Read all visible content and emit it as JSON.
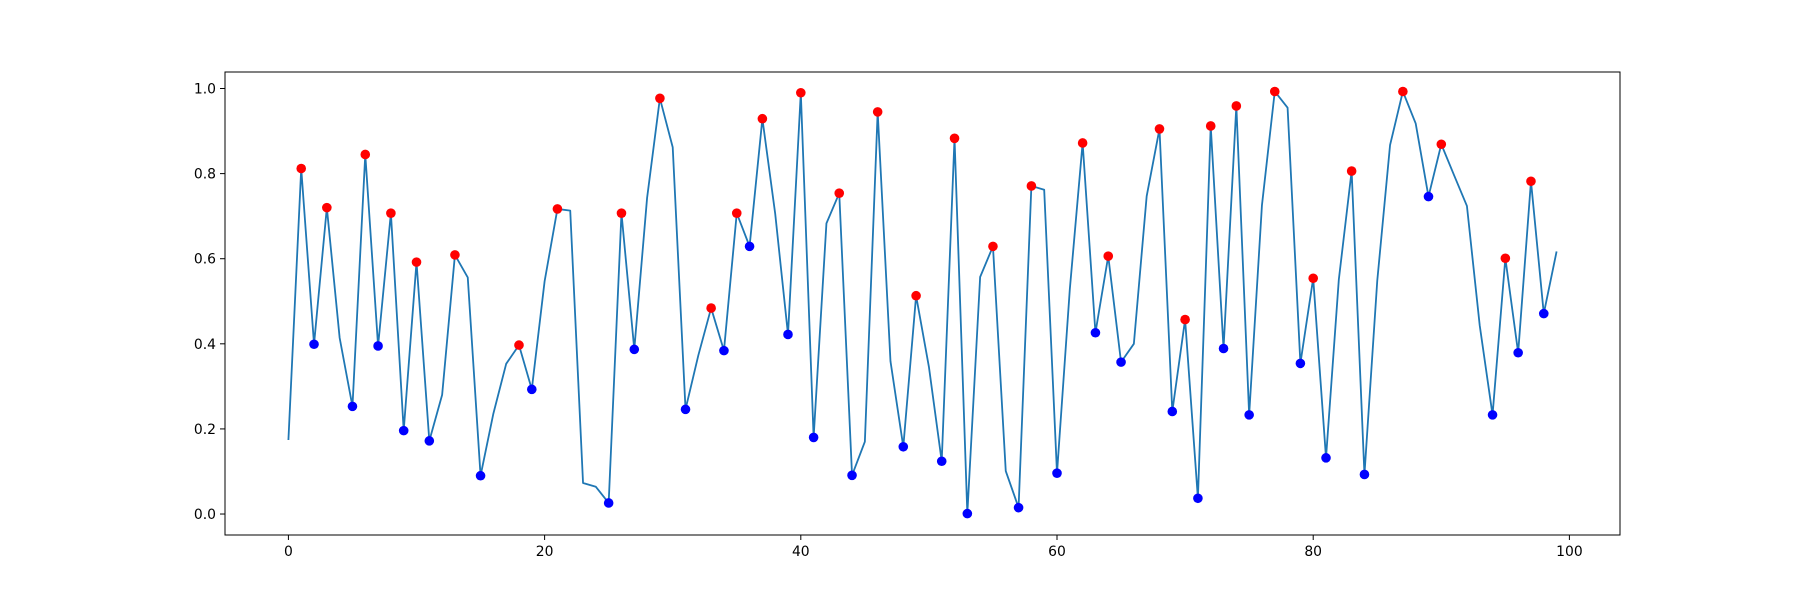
{
  "chart_data": {
    "type": "line",
    "title": "",
    "xlabel": "",
    "ylabel": "",
    "xlim": [
      -4.95,
      103.95
    ],
    "ylim": [
      -0.0493,
      1.0388
    ],
    "x_ticks": [
      0,
      20,
      40,
      60,
      80,
      100
    ],
    "y_ticks": [
      0.0,
      0.2,
      0.4,
      0.6,
      0.8,
      1.0
    ],
    "x_tick_labels": [
      "0",
      "20",
      "40",
      "60",
      "80",
      "100"
    ],
    "y_tick_labels": [
      "0.0",
      "0.2",
      "0.4",
      "0.6",
      "0.8",
      "1.0"
    ],
    "grid": false,
    "colors": {
      "line": "#1f77b4",
      "peaks": "#ff0000",
      "troughs": "#0000ff"
    },
    "series": [
      {
        "type": "line",
        "x": [
          0,
          1,
          2,
          3,
          4,
          5,
          6,
          7,
          8,
          9,
          10,
          11,
          12,
          13,
          14,
          15,
          16,
          17,
          18,
          19,
          20,
          21,
          22,
          23,
          24,
          25,
          26,
          27,
          28,
          29,
          30,
          31,
          32,
          33,
          34,
          35,
          36,
          37,
          38,
          39,
          40,
          41,
          42,
          43,
          44,
          45,
          46,
          47,
          48,
          49,
          50,
          51,
          52,
          53,
          54,
          55,
          56,
          57,
          58,
          59,
          60,
          61,
          62,
          63,
          64,
          65,
          66,
          67,
          68,
          69,
          70,
          71,
          72,
          73,
          74,
          75,
          76,
          77,
          78,
          79,
          80,
          81,
          82,
          83,
          84,
          85,
          86,
          87,
          88,
          89,
          90,
          91,
          92,
          93,
          94,
          95,
          96,
          97,
          98,
          99
        ],
        "y": [
          0.174,
          0.812,
          0.399,
          0.72,
          0.414,
          0.253,
          0.845,
          0.395,
          0.707,
          0.196,
          0.592,
          0.172,
          0.28,
          0.609,
          0.556,
          0.09,
          0.236,
          0.353,
          0.397,
          0.293,
          0.547,
          0.717,
          0.713,
          0.073,
          0.064,
          0.026,
          0.707,
          0.387,
          0.743,
          0.977,
          0.862,
          0.246,
          0.373,
          0.484,
          0.384,
          0.707,
          0.629,
          0.929,
          0.706,
          0.422,
          0.99,
          0.18,
          0.683,
          0.754,
          0.091,
          0.17,
          0.945,
          0.359,
          0.158,
          0.513,
          0.346,
          0.124,
          0.883,
          0.001,
          0.557,
          0.629,
          0.101,
          0.015,
          0.771,
          0.762,
          0.096,
          0.528,
          0.872,
          0.426,
          0.606,
          0.357,
          0.4,
          0.747,
          0.905,
          0.241,
          0.457,
          0.037,
          0.912,
          0.389,
          0.959,
          0.233,
          0.726,
          0.993,
          0.955,
          0.354,
          0.554,
          0.132,
          0.551,
          0.806,
          0.093,
          0.548,
          0.867,
          0.993,
          0.918,
          0.746,
          0.869,
          0.796,
          0.724,
          0.443,
          0.233,
          0.601,
          0.379,
          0.782,
          0.471,
          0.617
        ]
      },
      {
        "type": "scatter",
        "x": [
          1,
          3,
          6,
          8,
          10,
          13,
          18,
          21,
          26,
          29,
          33,
          35,
          37,
          40,
          43,
          46,
          49,
          52,
          55,
          58,
          62,
          64,
          68,
          70,
          72,
          74,
          77,
          80,
          83,
          87,
          90,
          95,
          97
        ],
        "y": [
          0.812,
          0.72,
          0.845,
          0.707,
          0.592,
          0.609,
          0.397,
          0.717,
          0.707,
          0.977,
          0.484,
          0.707,
          0.929,
          0.99,
          0.754,
          0.945,
          0.513,
          0.883,
          0.629,
          0.771,
          0.872,
          0.606,
          0.905,
          0.457,
          0.912,
          0.959,
          0.993,
          0.554,
          0.806,
          0.993,
          0.869,
          0.601,
          0.782
        ]
      },
      {
        "type": "scatter",
        "x": [
          2,
          5,
          7,
          9,
          11,
          15,
          19,
          25,
          27,
          31,
          34,
          36,
          39,
          41,
          44,
          48,
          51,
          53,
          57,
          60,
          63,
          65,
          69,
          71,
          73,
          75,
          79,
          81,
          84,
          89,
          94,
          96,
          98
        ],
        "y": [
          0.399,
          0.253,
          0.395,
          0.196,
          0.172,
          0.09,
          0.293,
          0.026,
          0.387,
          0.246,
          0.384,
          0.629,
          0.422,
          0.18,
          0.091,
          0.158,
          0.124,
          0.001,
          0.015,
          0.096,
          0.426,
          0.357,
          0.241,
          0.037,
          0.389,
          0.233,
          0.354,
          0.132,
          0.093,
          0.746,
          0.233,
          0.379,
          0.471
        ]
      }
    ]
  }
}
